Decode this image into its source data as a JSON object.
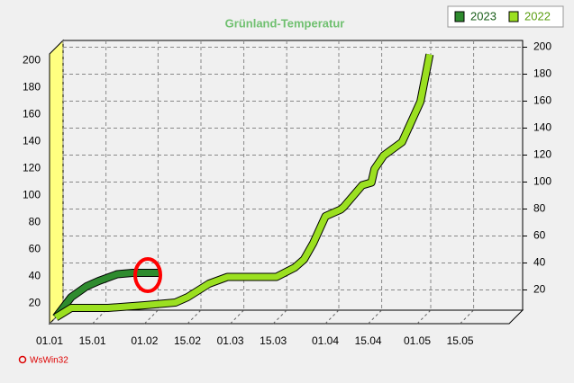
{
  "chart_data": {
    "type": "line",
    "title": "Grünland-Temperatur",
    "footer": "WsWin32",
    "xlim": [
      0,
      150
    ],
    "xticks": [
      {
        "value": 0,
        "label": "01.01"
      },
      {
        "value": 14,
        "label": "15.01"
      },
      {
        "value": 31,
        "label": "01.02"
      },
      {
        "value": 45,
        "label": "15.02"
      },
      {
        "value": 59,
        "label": "01.03"
      },
      {
        "value": 73,
        "label": "15.03"
      },
      {
        "value": 90,
        "label": "01.04"
      },
      {
        "value": 104,
        "label": "15.04"
      },
      {
        "value": 120,
        "label": "01.05"
      },
      {
        "value": 134,
        "label": "15.05"
      }
    ],
    "ylim": [
      5,
      205
    ],
    "yticks": [
      20,
      40,
      60,
      80,
      100,
      120,
      140,
      160,
      180,
      200
    ],
    "grid": true,
    "legend": "top-right",
    "series": [
      {
        "name": "2023",
        "color": "#2e8b2e",
        "x": [
          0,
          5,
          10,
          14,
          20,
          25,
          30,
          34
        ],
        "values": [
          5,
          20,
          28,
          32,
          37,
          38,
          38,
          38
        ]
      },
      {
        "name": "2022",
        "color": "#9be020",
        "x": [
          0,
          5,
          17,
          29,
          39,
          43,
          50,
          56,
          72,
          78,
          81,
          84,
          88,
          93,
          94,
          97,
          100,
          103,
          104,
          107,
          110,
          113,
          116,
          119,
          122
        ],
        "values": [
          5,
          12,
          12,
          14,
          16,
          20,
          30,
          35,
          35,
          42,
          48,
          60,
          80,
          85,
          87,
          95,
          103,
          105,
          115,
          125,
          130,
          135,
          150,
          165,
          200
        ]
      }
    ]
  }
}
